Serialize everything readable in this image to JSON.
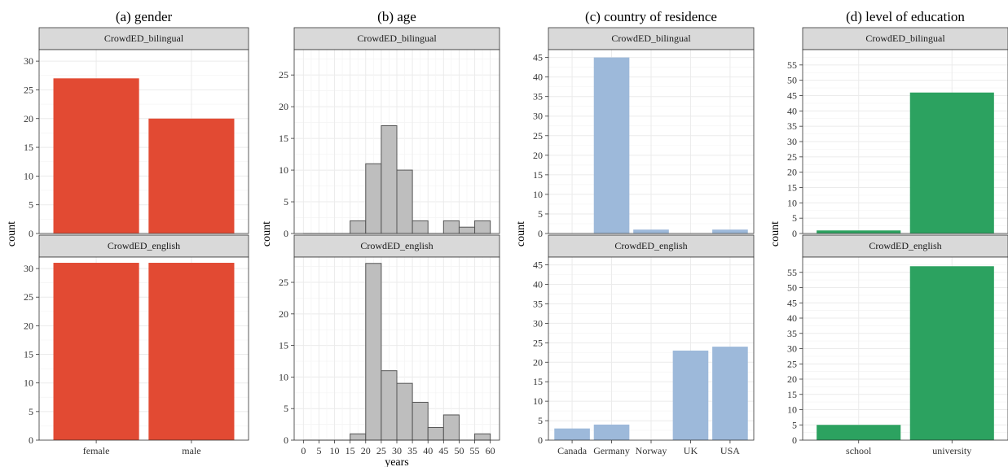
{
  "chart_data": [
    {
      "type": "bar",
      "title": "(a) gender",
      "ylabel": "count",
      "xlabel": "",
      "categories": [
        "female",
        "male"
      ],
      "ylim": [
        0,
        32
      ],
      "yticks": [
        0,
        5,
        10,
        15,
        20,
        25,
        30
      ],
      "color": "#E24A33",
      "grid": true,
      "panels": [
        {
          "name": "CrowdED_bilingual",
          "values": [
            27,
            20
          ]
        },
        {
          "name": "CrowdED_english",
          "values": [
            31,
            31
          ]
        }
      ]
    },
    {
      "type": "bar",
      "subtype": "histogram",
      "title": "(b) age",
      "ylabel": "count",
      "xlabel": "years",
      "x": [
        2.5,
        7.5,
        12.5,
        17.5,
        22.5,
        27.5,
        32.5,
        37.5,
        42.5,
        47.5,
        52.5,
        57.5
      ],
      "bin_width": 5,
      "xlim": [
        0,
        60
      ],
      "xticks": [
        0,
        5,
        10,
        15,
        20,
        25,
        30,
        35,
        40,
        45,
        50,
        55,
        60
      ],
      "ylim": [
        0,
        29
      ],
      "yticks": [
        0,
        5,
        10,
        15,
        20,
        25
      ],
      "color": "#BEBEBE",
      "grid": true,
      "panels": [
        {
          "name": "CrowdED_bilingual",
          "values": [
            0,
            0,
            0,
            2,
            11,
            17,
            10,
            2,
            0,
            2,
            1,
            2
          ]
        },
        {
          "name": "CrowdED_english",
          "values": [
            0,
            0,
            0,
            1,
            28,
            11,
            9,
            6,
            2,
            4,
            0,
            1
          ]
        }
      ]
    },
    {
      "type": "bar",
      "title": "(c) country of residence",
      "ylabel": "count",
      "xlabel": "",
      "categories": [
        "Canada",
        "Germany",
        "Norway",
        "UK",
        "USA"
      ],
      "ylim": [
        0,
        47
      ],
      "yticks": [
        0,
        5,
        10,
        15,
        20,
        25,
        30,
        35,
        40,
        45
      ],
      "color": "#9DB9DA",
      "grid": true,
      "panels": [
        {
          "name": "CrowdED_bilingual",
          "values": [
            0,
            45,
            1,
            0,
            1
          ]
        },
        {
          "name": "CrowdED_english",
          "values": [
            3,
            4,
            0,
            23,
            24
          ]
        }
      ]
    },
    {
      "type": "bar",
      "title": "(d) level of education",
      "ylabel": "count",
      "xlabel": "",
      "categories": [
        "school",
        "university"
      ],
      "ylim": [
        0,
        60
      ],
      "yticks": [
        0,
        5,
        10,
        15,
        20,
        25,
        30,
        35,
        40,
        45,
        50,
        55
      ],
      "color": "#2CA260",
      "grid": true,
      "panels": [
        {
          "name": "CrowdED_bilingual",
          "values": [
            1,
            46
          ]
        },
        {
          "name": "CrowdED_english",
          "values": [
            5,
            57
          ]
        }
      ]
    }
  ]
}
